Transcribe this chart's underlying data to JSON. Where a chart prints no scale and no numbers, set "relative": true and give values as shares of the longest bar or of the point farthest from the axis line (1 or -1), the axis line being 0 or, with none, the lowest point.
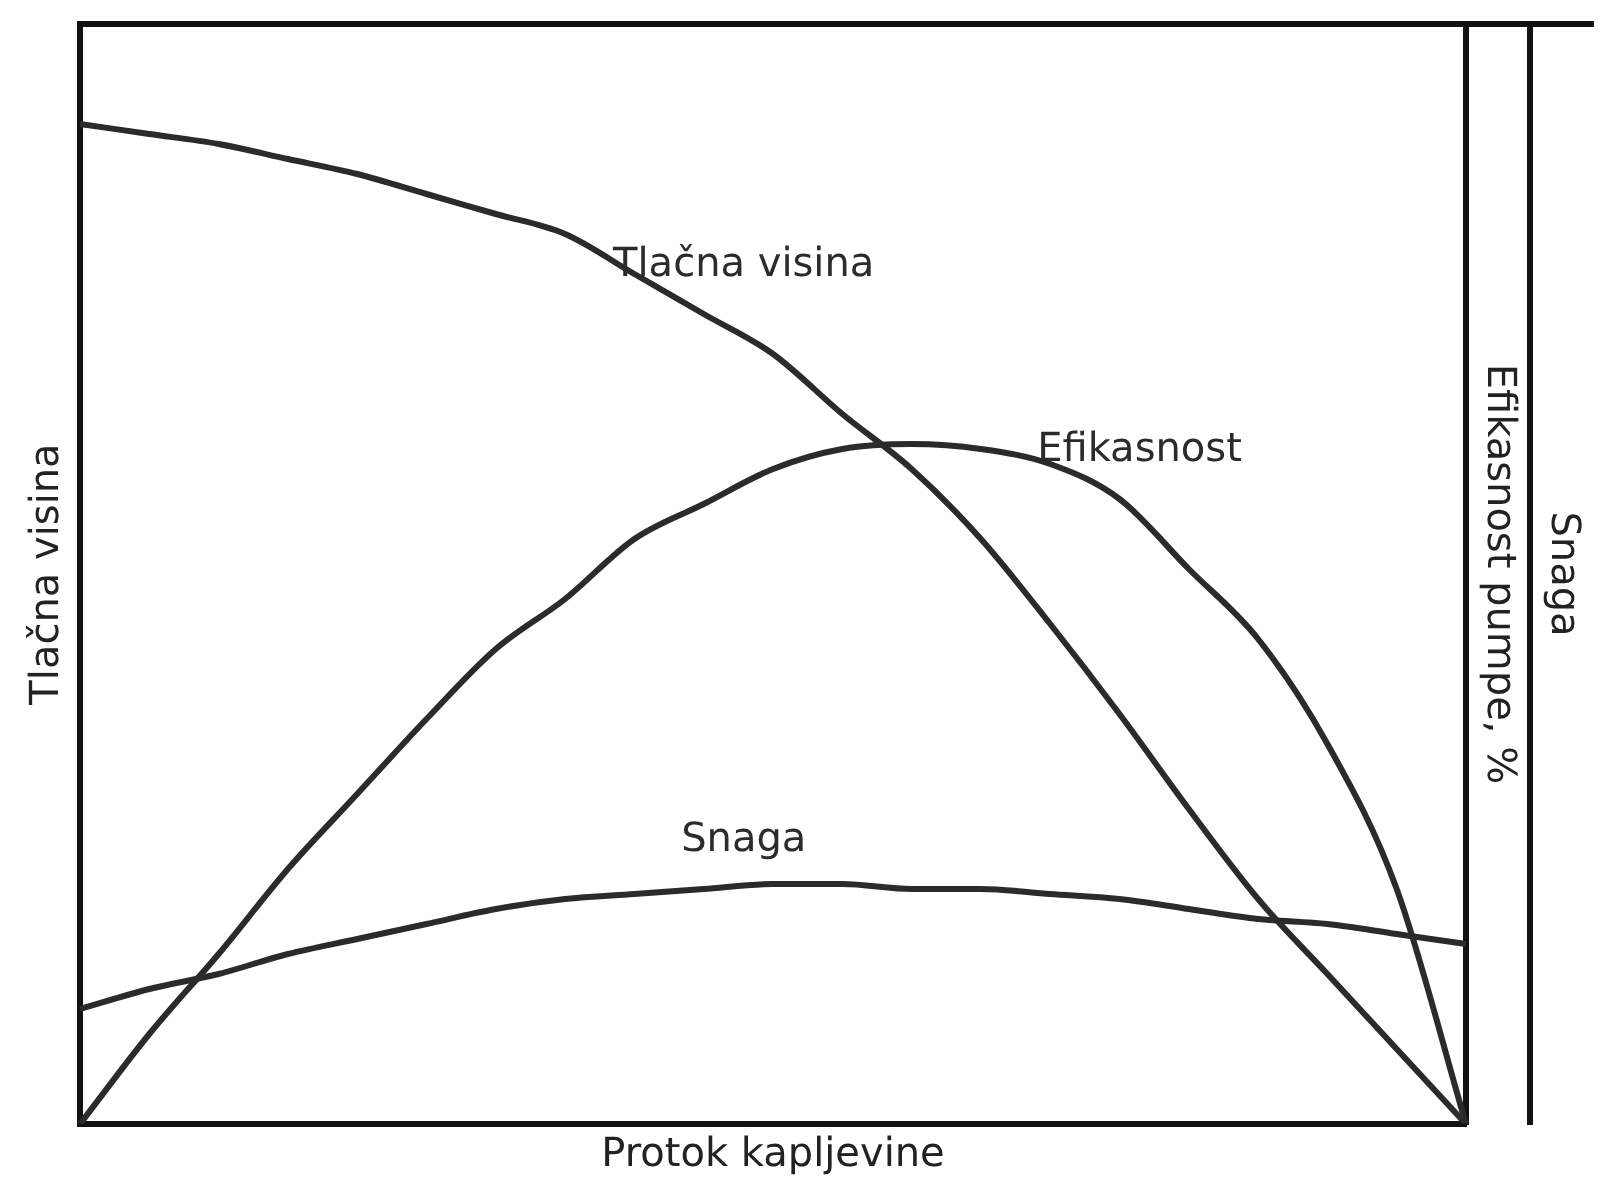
{
  "chart_data": {
    "type": "line",
    "relative": true,
    "xlabel": "Protok kapljevine",
    "ylabel": "Tlačna visina",
    "y2label": "Efikasnost pumpe, %",
    "y3label": "Snaga",
    "legend": false,
    "grid": false,
    "marker": "none",
    "line_style": "solid",
    "categories": [
      null,
      null,
      null,
      null,
      null,
      null,
      null,
      null,
      null,
      null,
      null,
      null,
      null,
      null,
      null,
      null,
      null,
      null,
      null,
      null,
      null
    ],
    "series": [
      {
        "name": "Tlačna visina",
        "color": "#2b2b2b",
        "values": [
          1.0,
          0.99,
          0.98,
          0.965,
          0.95,
          0.93,
          0.91,
          0.89,
          0.85,
          0.81,
          0.77,
          0.71,
          0.655,
          0.585,
          0.5,
          0.41,
          0.315,
          0.225,
          0.15,
          0.075,
          0
        ]
      },
      {
        "name": "Efikasnost",
        "color": "#2b2b2b",
        "values": [
          0,
          0.09,
          0.17,
          0.255,
          0.33,
          0.405,
          0.475,
          0.525,
          0.585,
          0.62,
          0.655,
          0.675,
          0.68,
          0.675,
          0.66,
          0.625,
          0.555,
          0.485,
          0.38,
          0.235,
          0
        ]
      },
      {
        "name": "Snaga",
        "color": "#2b2b2b",
        "values": [
          0.115,
          0.135,
          0.15,
          0.17,
          0.185,
          0.2,
          0.215,
          0.225,
          0.23,
          0.235,
          0.24,
          0.24,
          0.235,
          0.235,
          0.23,
          0.225,
          0.215,
          0.205,
          0.2,
          0.19,
          0.18
        ]
      }
    ]
  }
}
